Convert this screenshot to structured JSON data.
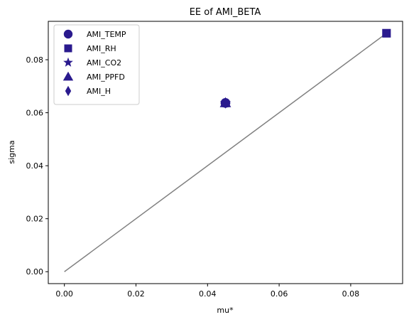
{
  "chart_data": {
    "type": "scatter",
    "title": "EE of AMI_BETA",
    "xlabel": "mu*",
    "ylabel": "sigma",
    "xlim": [
      -0.0045,
      0.0945
    ],
    "ylim": [
      -0.0045,
      0.0945
    ],
    "xticks": [
      "0.00",
      "0.02",
      "0.04",
      "0.06",
      "0.08"
    ],
    "xtick_values": [
      0.0,
      0.02,
      0.04,
      0.06,
      0.08
    ],
    "yticks": [
      "0.00",
      "0.02",
      "0.04",
      "0.06",
      "0.08"
    ],
    "ytick_values": [
      0.0,
      0.02,
      0.04,
      0.06,
      0.08
    ],
    "grid": false,
    "legend_position": "top-left",
    "marker_color": "#2a1a8e",
    "series": [
      {
        "name": "AMI_TEMP",
        "marker": "circle",
        "points": [
          {
            "x": 0.045,
            "y": 0.0637
          }
        ]
      },
      {
        "name": "AMI_RH",
        "marker": "square",
        "points": [
          {
            "x": 0.09,
            "y": 0.09
          }
        ]
      },
      {
        "name": "AMI_CO2",
        "marker": "star",
        "points": [
          {
            "x": 0.045,
            "y": 0.0637
          }
        ]
      },
      {
        "name": "AMI_PPFD",
        "marker": "triangle",
        "points": [
          {
            "x": 0.045,
            "y": 0.0637
          }
        ]
      },
      {
        "name": "AMI_H",
        "marker": "diamond",
        "points": [
          {
            "x": 0.045,
            "y": 0.0637
          }
        ]
      }
    ],
    "reference_line": {
      "color": "#808080",
      "from": [
        0.0,
        0.0
      ],
      "to": [
        0.09,
        0.09
      ]
    }
  }
}
